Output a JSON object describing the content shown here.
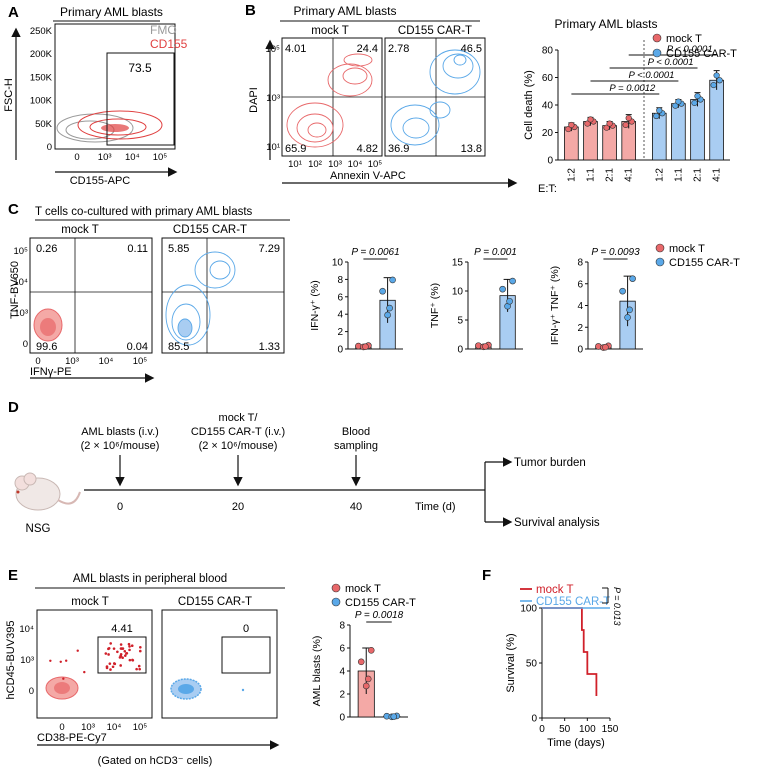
{
  "panels": {
    "A": {
      "letter": "A",
      "title": "Primary AML blasts",
      "ylabel": "FSC-H",
      "xlabel": "CD155-APC",
      "legend_fmo": "FMO",
      "legend_cd155": "CD155",
      "gate_value": "73.5",
      "yticks": [
        "250K",
        "200K",
        "150K",
        "100K",
        "50K",
        "0"
      ],
      "xticks": [
        "0",
        "10³",
        "10⁴",
        "10⁵"
      ]
    },
    "B": {
      "letter": "B",
      "title": "Primary AML blasts",
      "plot1_title": "mock T",
      "plot2_title": "CD155 CAR-T",
      "ylabel": "DAPI",
      "xlabel": "Annexin V-APC",
      "q_mock": [
        "4.01",
        "24.4",
        "65.9",
        "4.82"
      ],
      "q_car": [
        "2.78",
        "46.5",
        "36.9",
        "13.8"
      ],
      "yticks": [
        "10⁵",
        "10³",
        "10¹"
      ],
      "xticks": [
        "10¹",
        "10²",
        "10³",
        "10⁴",
        "10⁵"
      ]
    },
    "C": {
      "letter": "C",
      "title": "T cells co-cultured with primary AML blasts",
      "plot1_title": "mock T",
      "plot2_title": "CD155 CAR-T",
      "ylabel": "TNF-BV650",
      "xlabel": "IFNγ-PE",
      "q_mock": [
        "0.26",
        "0.11",
        "99.6",
        "0.04"
      ],
      "q_car": [
        "5.85",
        "7.29",
        "85.5",
        "1.33"
      ],
      "yticks": [
        "10⁵",
        "10⁴",
        "10³",
        "0"
      ],
      "xticks": [
        "0",
        "10³",
        "10⁴",
        "10⁵"
      ]
    },
    "D": {
      "letter": "D",
      "label_mouse": "NSG",
      "event1_line1": "AML blasts (i.v.)",
      "event1_line2": "(2 × 10⁶/mouse)",
      "event2_line1": "mock T/",
      "event2_line2": "CD155 CAR-T (i.v.)",
      "event2_line3": "(2 × 10⁶/mouse)",
      "event3_line1": "Blood",
      "event3_line2": "sampling",
      "tick1": "0",
      "tick2": "20",
      "tick3": "40",
      "axis_label": "Time (d)",
      "outcome1": "Tumor burden",
      "outcome2": "Survival analysis"
    },
    "E": {
      "letter": "E",
      "title": "AML blasts in peripheral blood",
      "plot1_title": "mock T",
      "plot2_title": "CD155 CAR-T",
      "ylabel": "hCD45-BUV395",
      "xlabel": "CD38-PE-Cy7",
      "gate_mock": "4.41",
      "gate_car": "0",
      "footnote": "(Gated on hCD3⁻ cells)",
      "yticks": [
        "10⁴",
        "10³",
        "0"
      ],
      "xticks": [
        "0",
        "10³",
        "10⁴",
        "10⁵"
      ]
    },
    "F": {
      "letter": "F",
      "pvalue": "P = 0.013"
    }
  },
  "legend": {
    "mock": "mock T",
    "car": "CD155 CAR-T"
  },
  "colors": {
    "mock": "#e8686a",
    "mock_fill": "#f4a9a6",
    "car": "#5aa8e8",
    "car_fill": "#a9cdf2",
    "fmo": "#9a9a9a",
    "mock_line": "#d0202a"
  },
  "chart_data": [
    {
      "id": "B-bar",
      "type": "bar",
      "title": "Primary AML blasts",
      "ylabel": "Cell death (%)",
      "xlabel": "E:T",
      "ylim": [
        0,
        80
      ],
      "yticks": [
        0,
        20,
        40,
        60,
        80
      ],
      "categories": [
        "1:2",
        "1:1",
        "2:1",
        "4:1"
      ],
      "series": [
        {
          "name": "mock T",
          "values": [
            24,
            28,
            25,
            28
          ],
          "errors": [
            3,
            3,
            3,
            5
          ]
        },
        {
          "name": "CD155 CAR-T",
          "values": [
            34,
            41,
            44,
            58
          ],
          "errors": [
            4,
            3,
            5,
            7
          ]
        }
      ],
      "pvalues": [
        "P = 0.0012",
        "P < 0.0001",
        "P < 0.0001",
        "P < 0.0001"
      ]
    },
    {
      "id": "C-ifng",
      "type": "bar",
      "ylabel": "IFN-γ⁺ (%)",
      "ylim": [
        0,
        10
      ],
      "yticks": [
        0,
        2,
        4,
        6,
        8,
        10
      ],
      "categories": [
        "mock T",
        "CD155 CAR-T"
      ],
      "values": [
        0.3,
        5.6
      ],
      "errors": [
        0.1,
        2.6
      ],
      "pvalue": "P = 0.0061"
    },
    {
      "id": "C-tnf",
      "type": "bar",
      "ylabel": "TNF⁺ (%)",
      "ylim": [
        0,
        15
      ],
      "yticks": [
        0,
        5,
        10,
        15
      ],
      "categories": [
        "mock T",
        "CD155 CAR-T"
      ],
      "values": [
        0.5,
        9.2
      ],
      "errors": [
        0.2,
        2.8
      ],
      "pvalue": "P = 0.001"
    },
    {
      "id": "C-dp",
      "type": "bar",
      "ylabel": "IFN-γ⁺ TNF⁺ (%)",
      "ylim": [
        0,
        8
      ],
      "yticks": [
        0,
        2,
        4,
        6,
        8
      ],
      "categories": [
        "mock T",
        "CD155 CAR-T"
      ],
      "values": [
        0.2,
        4.4
      ],
      "errors": [
        0.1,
        2.3
      ],
      "pvalue": "P = 0.0093"
    },
    {
      "id": "E-bar",
      "type": "bar",
      "ylabel": "AML blasts (%)",
      "ylim": [
        0,
        8
      ],
      "yticks": [
        0,
        2,
        4,
        6,
        8
      ],
      "categories": [
        "mock T",
        "CD155 CAR-T"
      ],
      "values": [
        4.0,
        0.05
      ],
      "errors": [
        2.0,
        0.05
      ],
      "pvalue": "P = 0.0018"
    },
    {
      "id": "F-survival",
      "type": "line",
      "ylabel": "Survival (%)",
      "xlabel": "Time (days)",
      "ylim": [
        0,
        100
      ],
      "xlim": [
        0,
        150
      ],
      "yticks": [
        0,
        50,
        100
      ],
      "xticks": [
        0,
        50,
        100,
        150
      ],
      "series": [
        {
          "name": "mock T",
          "x": [
            0,
            88,
            88,
            92,
            92,
            100,
            100,
            120,
            120
          ],
          "y": [
            100,
            100,
            80,
            80,
            60,
            60,
            40,
            40,
            20
          ]
        },
        {
          "name": "CD155 CAR-T",
          "x": [
            0,
            150
          ],
          "y": [
            100,
            100
          ]
        }
      ]
    }
  ]
}
